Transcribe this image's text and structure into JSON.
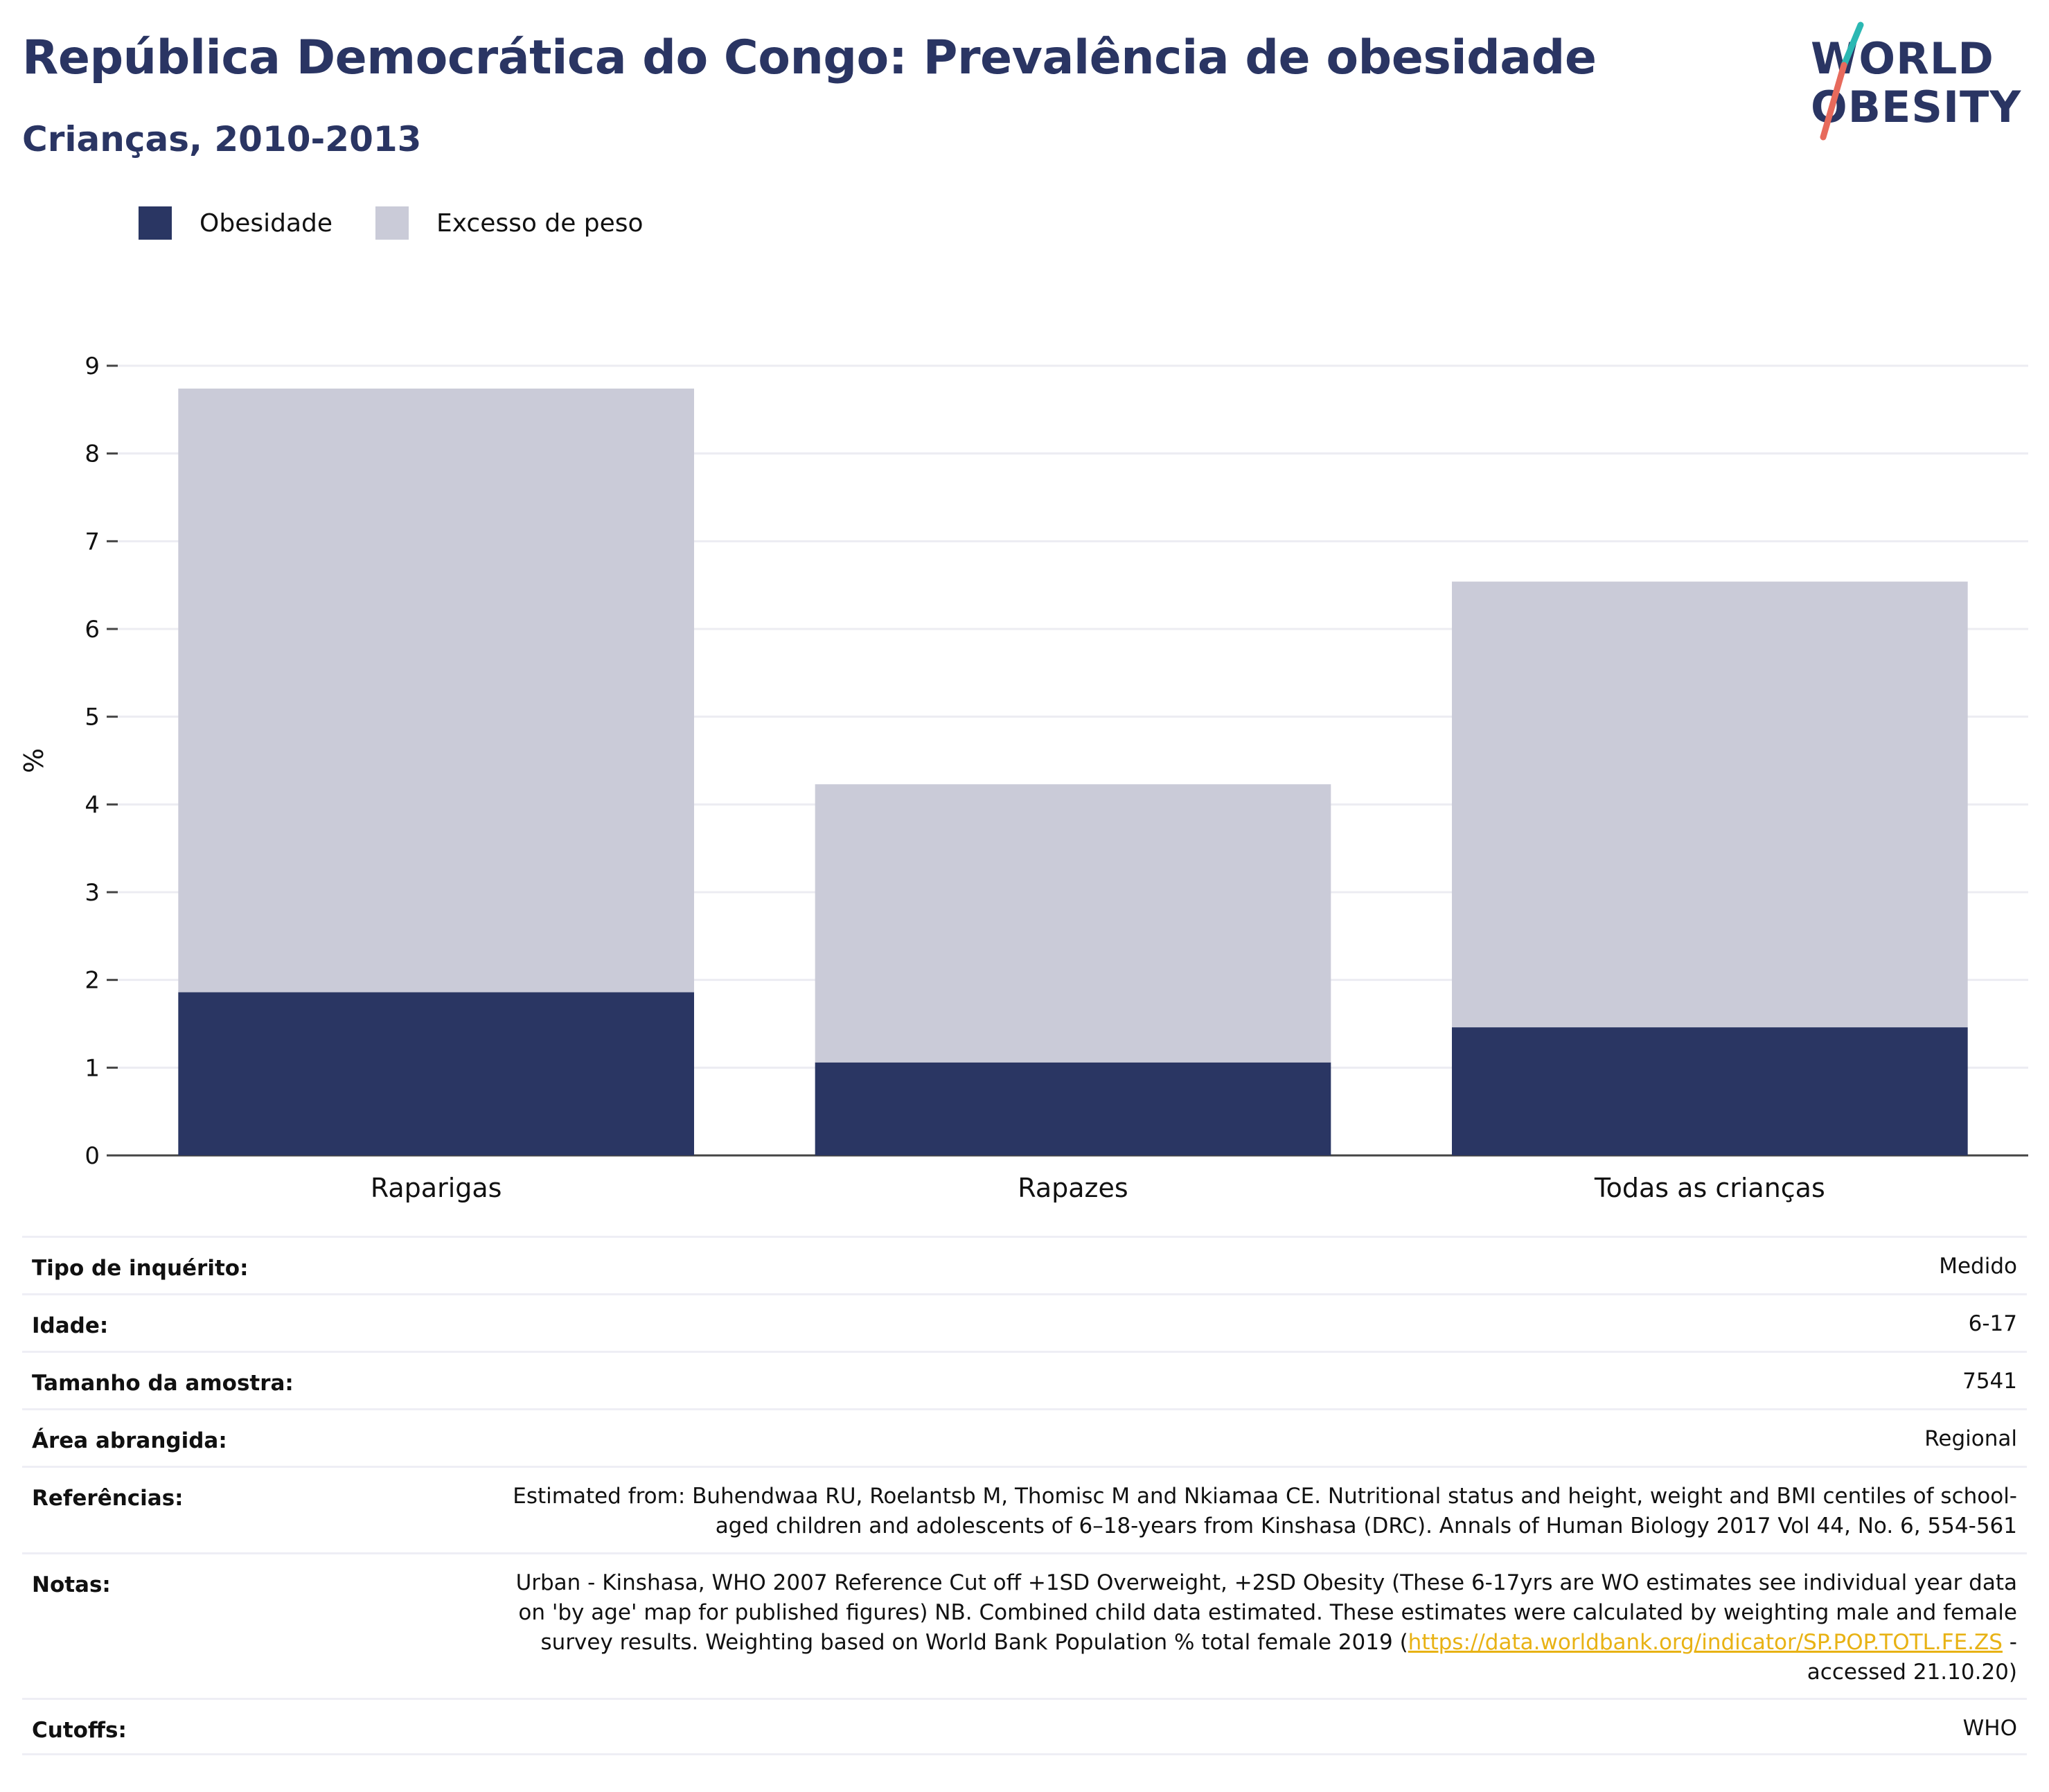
{
  "header": {
    "title": "República Democrática do Congo: Prevalência de obesidade",
    "subtitle": "Crianças, 2010-2013"
  },
  "logo": {
    "line1": "WORLD",
    "line2": "OBESITY"
  },
  "legend": {
    "items": [
      {
        "label": "Obesidade",
        "color": "#2a3663"
      },
      {
        "label": "Excesso de peso",
        "color": "#cacbd8"
      }
    ]
  },
  "chart_data": {
    "type": "bar",
    "stacked": true,
    "categories": [
      "Raparigas",
      "Rapazes",
      "Todas as crianças"
    ],
    "series": [
      {
        "name": "Obesidade",
        "values": [
          1.86,
          1.06,
          1.46
        ],
        "color": "#2a3663"
      },
      {
        "name": "Excesso de peso",
        "values": [
          6.88,
          3.17,
          5.08
        ],
        "color": "#cacbd8"
      }
    ],
    "ylabel": "%",
    "ylim": [
      0,
      9
    ],
    "yticks": [
      0,
      1,
      2,
      3,
      4,
      5,
      6,
      7,
      8,
      9
    ],
    "grid": true,
    "legend_position": "top-left"
  },
  "details": [
    {
      "label": "Tipo de inquérito:",
      "value": "Medido"
    },
    {
      "label": "Idade:",
      "value": "6-17"
    },
    {
      "label": "Tamanho da amostra:",
      "value": "7541"
    },
    {
      "label": "Área abrangida:",
      "value": "Regional"
    },
    {
      "label": "Referências:",
      "value": "Estimated from: Buhendwaa RU, Roelantsb M, Thomisc M and Nkiamaa CE. Nutritional status and height, weight and BMI centiles of school-aged children and adolescents of 6–18-years from Kinshasa (DRC). Annals of Human Biology 2017 Vol 44, No. 6, 554-561"
    },
    {
      "label": "Notas:",
      "value": "Urban - Kinshasa, WHO 2007 Reference Cut off +1SD Overweight, +2SD Obesity (These 6-17yrs are WO estimates see individual year data on 'by age' map for published figures) NB. Combined child data estimated. These estimates were calculated by weighting male and female survey results. Weighting based on World Bank Population % total female 2019 (",
      "link": "https://data.worldbank.org/indicator/SP.POP.TOTL.FE.ZS",
      "suffix": " - accessed 21.10.20)"
    },
    {
      "label": "Cutoffs:",
      "value": "WHO"
    }
  ]
}
